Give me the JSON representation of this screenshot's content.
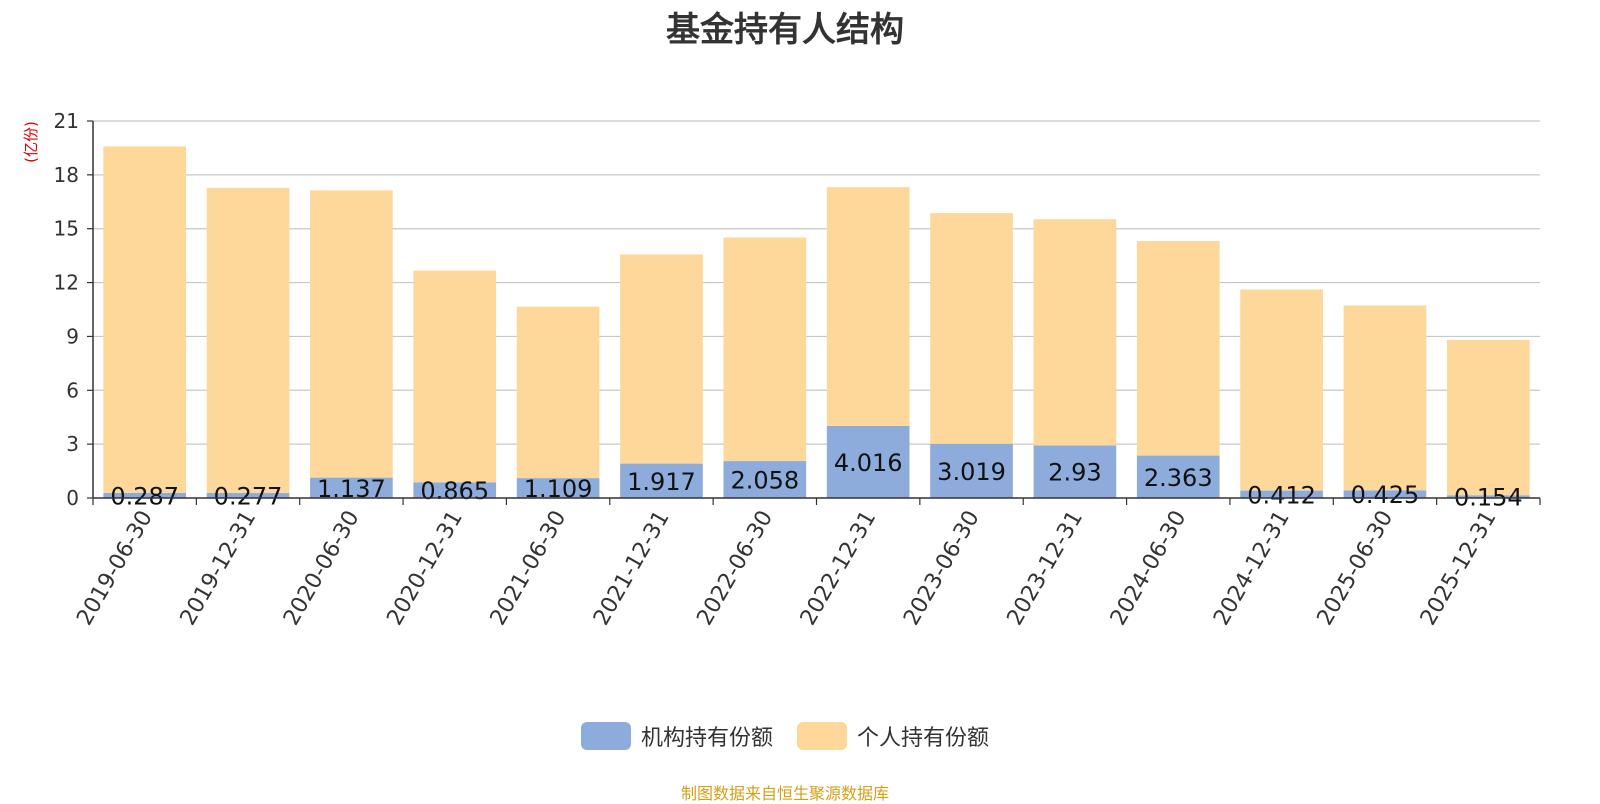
{
  "chart_data": {
    "type": "bar",
    "stacked": true,
    "title": "基金持有人结构",
    "ylabel": "(亿份)",
    "xlabel": "",
    "ylim": [
      0,
      21
    ],
    "yticks": [
      0,
      3,
      6,
      9,
      12,
      15,
      18,
      21
    ],
    "grid": true,
    "legend_position": "bottom",
    "categories": [
      "2019-06-30",
      "2019-12-31",
      "2020-06-30",
      "2020-12-31",
      "2021-06-30",
      "2021-12-31",
      "2022-06-30",
      "2022-12-31",
      "2023-06-30",
      "2023-12-31",
      "2024-06-30",
      "2024-12-31",
      "2025-06-30",
      "2025-12-31"
    ],
    "series": [
      {
        "name": "机构持有份额",
        "color": "#8eacdb",
        "values": [
          0.287,
          0.277,
          1.137,
          0.865,
          1.109,
          1.917,
          2.058,
          4.016,
          3.019,
          2.93,
          2.363,
          0.412,
          0.425,
          0.154
        ],
        "labels": [
          "0.287",
          "0.277",
          "1.137",
          "0.865",
          "1.109",
          "1.917",
          "2.058",
          "4.016",
          "3.019",
          "2.93",
          "2.363",
          "0.412",
          "0.425",
          "0.154"
        ]
      },
      {
        "name": "个人持有份额",
        "color": "#fdd89a",
        "values": [
          19.3,
          17.0,
          16.0,
          11.8,
          9.55,
          11.65,
          12.45,
          13.3,
          12.85,
          12.6,
          11.95,
          11.2,
          10.3,
          8.65
        ]
      }
    ],
    "source": "制图数据来自恒生聚源数据库"
  }
}
